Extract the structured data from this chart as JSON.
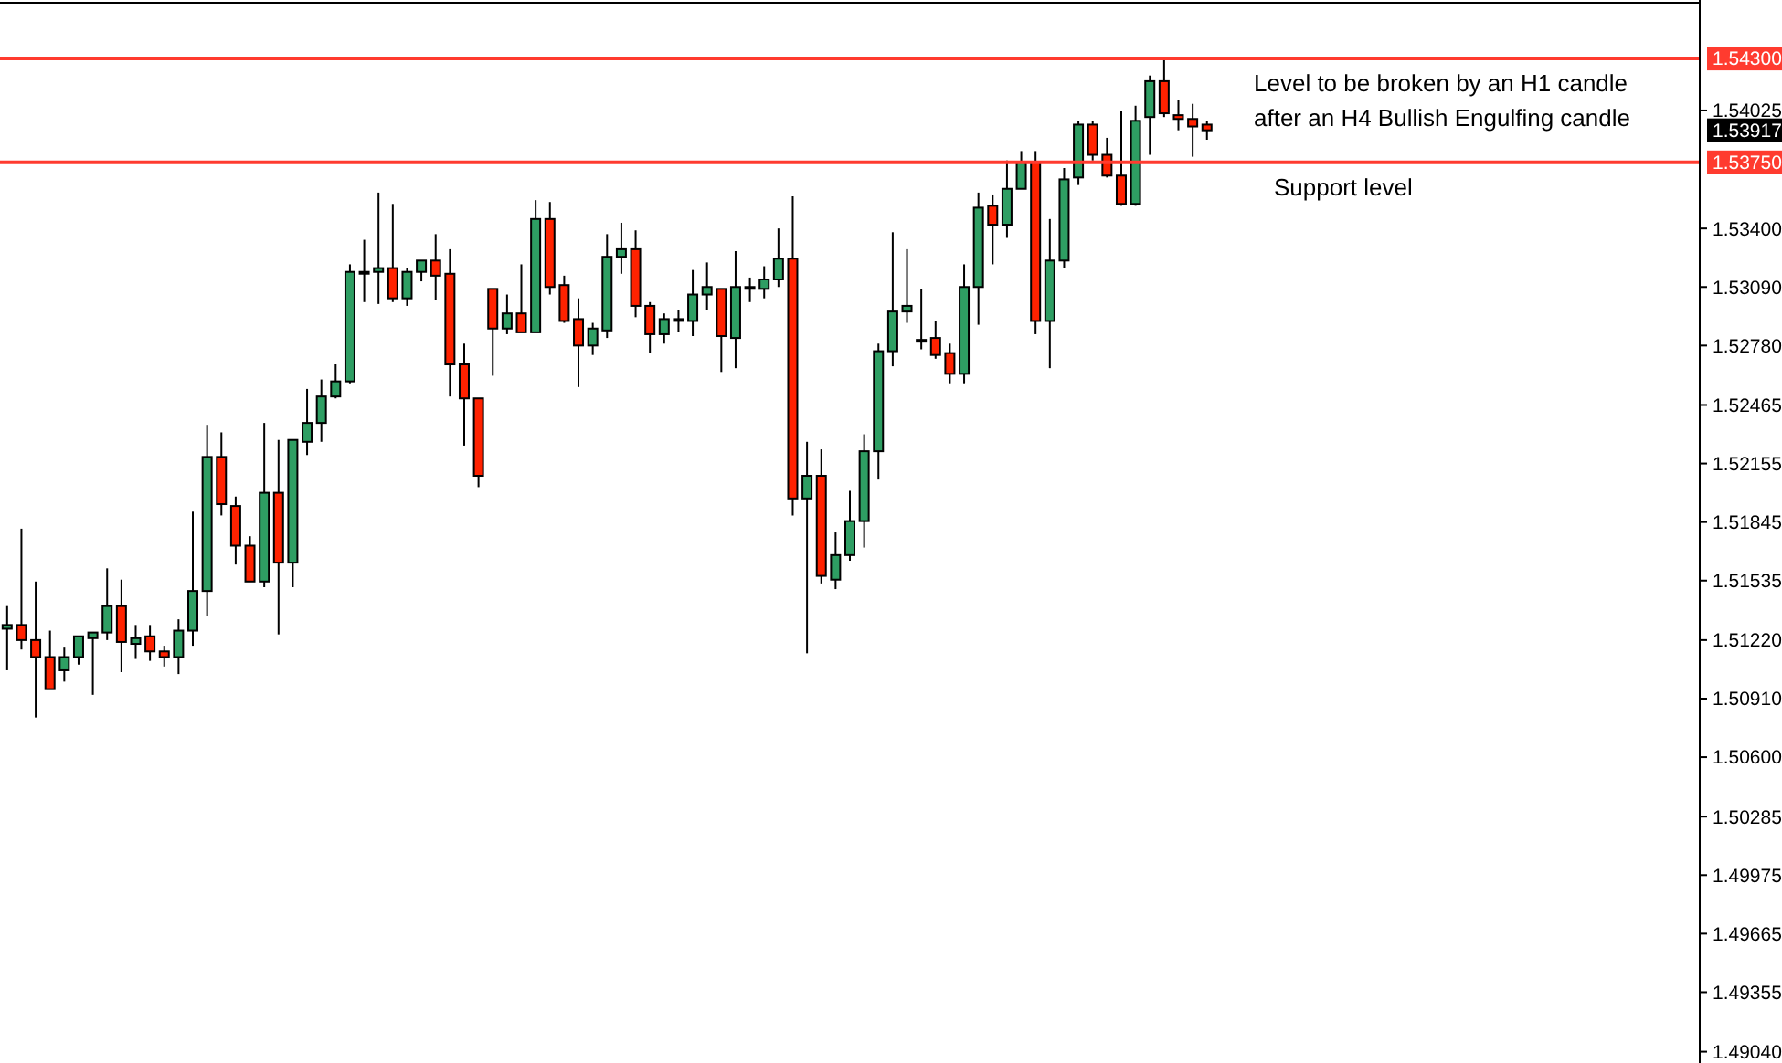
{
  "chart_data": {
    "type": "candlestick",
    "categories": [
      null,
      null,
      null,
      null,
      null,
      null,
      null,
      null,
      null,
      null,
      null,
      null,
      null,
      null,
      null,
      null,
      null,
      null,
      null,
      null,
      null,
      null,
      null,
      null,
      null,
      null,
      null,
      null,
      null,
      null,
      null,
      null,
      null,
      null,
      null,
      null,
      null,
      null,
      null,
      null,
      null,
      null,
      null,
      null,
      null,
      null,
      null,
      null,
      null,
      null,
      null,
      null,
      null,
      null,
      null,
      null,
      null,
      null,
      null,
      null,
      null,
      null,
      null,
      null,
      null,
      null,
      null,
      null,
      null,
      null,
      null,
      null,
      null,
      null,
      null,
      null,
      null,
      null,
      null,
      null,
      null,
      null,
      null,
      null,
      null,
      null,
      null,
      null,
      null,
      null,
      null,
      null,
      null,
      null,
      null,
      null,
      null,
      null,
      null,
      null,
      null,
      null,
      null,
      null,
      null,
      null,
      null,
      null,
      null,
      null,
      null,
      null,
      null,
      null,
      null,
      null,
      null,
      null,
      null
    ],
    "ohlc": [
      [
        1.5128,
        1.514,
        1.5106,
        1.513
      ],
      [
        1.513,
        1.5181,
        1.5117,
        1.5122
      ],
      [
        1.5122,
        1.5153,
        1.5081,
        1.5113
      ],
      [
        1.5113,
        1.5127,
        1.5096,
        1.5096
      ],
      [
        1.5106,
        1.5118,
        1.51,
        1.5113
      ],
      [
        1.5113,
        1.5124,
        1.5109,
        1.5124
      ],
      [
        1.5123,
        1.5126,
        1.5093,
        1.5126
      ],
      [
        1.5126,
        1.516,
        1.5122,
        1.514
      ],
      [
        1.514,
        1.5154,
        1.5105,
        1.5121
      ],
      [
        1.512,
        1.513,
        1.5112,
        1.5123
      ],
      [
        1.5124,
        1.513,
        1.5111,
        1.5116
      ],
      [
        1.5116,
        1.5119,
        1.5108,
        1.5113
      ],
      [
        1.5113,
        1.5133,
        1.5104,
        1.5127
      ],
      [
        1.5127,
        1.519,
        1.5119,
        1.5148
      ],
      [
        1.5148,
        1.5236,
        1.5135,
        1.5219
      ],
      [
        1.5219,
        1.5232,
        1.5188,
        1.5194
      ],
      [
        1.5193,
        1.5198,
        1.5162,
        1.5172
      ],
      [
        1.5172,
        1.5177,
        1.5153,
        1.5153
      ],
      [
        1.5153,
        1.5237,
        1.515,
        1.52
      ],
      [
        1.52,
        1.5228,
        1.5125,
        1.5163
      ],
      [
        1.5163,
        1.5228,
        1.515,
        1.5228
      ],
      [
        1.5227,
        1.5255,
        1.522,
        1.5237
      ],
      [
        1.5237,
        1.526,
        1.5227,
        1.5251
      ],
      [
        1.5251,
        1.5268,
        1.525,
        1.5259
      ],
      [
        1.5259,
        1.5321,
        1.5258,
        1.5317
      ],
      [
        1.5317,
        1.5334,
        1.5301,
        1.5317
      ],
      [
        1.5317,
        1.5359,
        1.53,
        1.5319
      ],
      [
        1.5319,
        1.5353,
        1.5301,
        1.5303
      ],
      [
        1.5303,
        1.5319,
        1.5299,
        1.5317
      ],
      [
        1.5317,
        1.5323,
        1.5312,
        1.5323
      ],
      [
        1.5323,
        1.5337,
        1.5302,
        1.5315
      ],
      [
        1.5316,
        1.5329,
        1.5251,
        1.5268
      ],
      [
        1.5268,
        1.5279,
        1.5225,
        1.525
      ],
      [
        1.525,
        1.525,
        1.5203,
        1.5209
      ],
      [
        1.5308,
        1.5308,
        1.5262,
        1.5287
      ],
      [
        1.5287,
        1.5305,
        1.5284,
        1.5295
      ],
      [
        1.5295,
        1.5321,
        1.5285,
        1.5285
      ],
      [
        1.5285,
        1.5355,
        1.5285,
        1.5345
      ],
      [
        1.5345,
        1.5354,
        1.5305,
        1.5309
      ],
      [
        1.531,
        1.5315,
        1.529,
        1.5291
      ],
      [
        1.5292,
        1.5303,
        1.5256,
        1.5278
      ],
      [
        1.5278,
        1.529,
        1.5273,
        1.5287
      ],
      [
        1.5286,
        1.5337,
        1.5282,
        1.5325
      ],
      [
        1.5325,
        1.5343,
        1.5316,
        1.5329
      ],
      [
        1.5329,
        1.5339,
        1.5293,
        1.5299
      ],
      [
        1.5299,
        1.5301,
        1.5274,
        1.5284
      ],
      [
        1.5284,
        1.5295,
        1.5279,
        1.5292
      ],
      [
        1.5292,
        1.5297,
        1.5285,
        1.5292
      ],
      [
        1.5291,
        1.5318,
        1.5283,
        1.5305
      ],
      [
        1.5305,
        1.5322,
        1.5297,
        1.5309
      ],
      [
        1.5308,
        1.5308,
        1.5264,
        1.5283
      ],
      [
        1.5282,
        1.5328,
        1.5266,
        1.5309
      ],
      [
        1.5309,
        1.5314,
        1.5301,
        1.5309
      ],
      [
        1.5308,
        1.532,
        1.5303,
        1.5313
      ],
      [
        1.5313,
        1.534,
        1.5309,
        1.5324
      ],
      [
        1.5324,
        1.5357,
        1.5188,
        1.5197
      ],
      [
        1.5197,
        1.5227,
        1.5115,
        1.5209
      ],
      [
        1.5209,
        1.5223,
        1.5152,
        1.5156
      ],
      [
        1.5154,
        1.5179,
        1.5149,
        1.5167
      ],
      [
        1.5167,
        1.5201,
        1.5164,
        1.5185
      ],
      [
        1.5185,
        1.5231,
        1.5171,
        1.5222
      ],
      [
        1.5222,
        1.5279,
        1.5207,
        1.5275
      ],
      [
        1.5275,
        1.5338,
        1.5267,
        1.5296
      ],
      [
        1.5296,
        1.5329,
        1.529,
        1.5299
      ],
      [
        1.5281,
        1.5308,
        1.5276,
        1.5281
      ],
      [
        1.5282,
        1.5291,
        1.5271,
        1.5273
      ],
      [
        1.5274,
        1.5279,
        1.5258,
        1.5263
      ],
      [
        1.5263,
        1.5321,
        1.5258,
        1.5309
      ],
      [
        1.5309,
        1.5359,
        1.5289,
        1.5351
      ],
      [
        1.5352,
        1.5358,
        1.5321,
        1.5342
      ],
      [
        1.5342,
        1.5376,
        1.5335,
        1.5361
      ],
      [
        1.5361,
        1.5381,
        1.5361,
        1.5375
      ],
      [
        1.5375,
        1.5381,
        1.5284,
        1.5291
      ],
      [
        1.5291,
        1.5345,
        1.5266,
        1.5323
      ],
      [
        1.5323,
        1.5372,
        1.5319,
        1.5366
      ],
      [
        1.5367,
        1.5397,
        1.5363,
        1.5395
      ],
      [
        1.5395,
        1.5397,
        1.5376,
        1.5379
      ],
      [
        1.5379,
        1.5388,
        1.5367,
        1.5368
      ],
      [
        1.5368,
        1.5402,
        1.5352,
        1.5353
      ],
      [
        1.5353,
        1.5405,
        1.5352,
        1.5397
      ],
      [
        1.5399,
        1.5421,
        1.5379,
        1.5418
      ],
      [
        1.5418,
        1.5431,
        1.5399,
        1.5401
      ],
      [
        1.54,
        1.5408,
        1.5392,
        1.5398
      ],
      [
        1.5398,
        1.5406,
        1.5378,
        1.5394
      ],
      [
        1.5395,
        1.5397,
        1.5387,
        1.5392
      ],
      null,
      null,
      null,
      null,
      null,
      null,
      null,
      null,
      null,
      null,
      null,
      null,
      null,
      null,
      null,
      null,
      null,
      null,
      null,
      null,
      null,
      null,
      null,
      null,
      null,
      null,
      null,
      null,
      null,
      null,
      null,
      null,
      null,
      null
    ],
    "colors": [
      "#2e9e63",
      "#ff2200",
      "#ff2200",
      "#ff2200",
      "#2e9e63",
      "#2e9e63",
      "#2e9e63",
      "#2e9e63",
      "#ff2200",
      "#2e9e63",
      "#ff2200",
      "#ff2200",
      "#2e9e63",
      "#2e9e63",
      "#2e9e63",
      "#ff2200",
      "#ff2200",
      "#ff2200",
      "#2e9e63",
      "#ff2200",
      "#2e9e63",
      "#2e9e63",
      "#2e9e63",
      "#2e9e63",
      "#2e9e63",
      "#2e9e63",
      "#2e9e63",
      "#ff2200",
      "#2e9e63",
      "#2e9e63",
      "#ff2200",
      "#ff2200",
      "#ff2200",
      "#ff2200",
      "#ff2200",
      "#2e9e63",
      "#ff2200",
      "#2e9e63",
      "#ff2200",
      "#ff2200",
      "#ff2200",
      "#2e9e63",
      "#2e9e63",
      "#2e9e63",
      "#ff2200",
      "#ff2200",
      "#2e9e63",
      "#2e9e63",
      "#2e9e63",
      "#2e9e63",
      "#ff2200",
      "#2e9e63",
      "#2e9e63",
      "#2e9e63",
      "#2e9e63",
      "#ff2200",
      "#2e9e63",
      "#ff2200",
      "#2e9e63",
      "#2e9e63",
      "#2e9e63",
      "#2e9e63",
      "#2e9e63",
      "#2e9e63",
      "#2e9e63",
      "#ff2200",
      "#ff2200",
      "#2e9e63",
      "#2e9e63",
      "#ff2200",
      "#2e9e63",
      "#2e9e63",
      "#ff2200",
      "#2e9e63",
      "#2e9e63",
      "#2e9e63",
      "#ff2200",
      "#ff2200",
      "#ff2200",
      "#2e9e63",
      "#2e9e63",
      "#ff2200",
      "#ff2200",
      "#ff2200",
      "#ff2200",
      null,
      null,
      null,
      null,
      null,
      null,
      null,
      null,
      null,
      null,
      null,
      null,
      null,
      null,
      null,
      null,
      null,
      null,
      null,
      null,
      null,
      null,
      null,
      null,
      null,
      null,
      null,
      null,
      null,
      null,
      null,
      null,
      null,
      null
    ],
    "ylim": [
      1.4898,
      1.5461
    ],
    "yticks": [
      1.54025,
      {
        "value": 1.534,
        "label": "1.53400"
      },
      {
        "value": 1.5309,
        "label": "1.53090"
      },
      {
        "value": 1.5278,
        "label": "1.52780"
      },
      1.52465,
      1.52155,
      1.51845,
      1.51535,
      {
        "value": 1.5122,
        "label": "1.51220"
      },
      {
        "value": 1.5091,
        "label": "1.50910"
      },
      {
        "value": 1.506,
        "label": "1.50600"
      },
      1.50285,
      1.49975,
      1.49665,
      1.49355,
      {
        "value": 1.4904,
        "label": "1.49040"
      }
    ],
    "ref_lines": [
      {
        "axis": "y",
        "value": 1.543,
        "label": "1.54300",
        "color": "#ff3b2f"
      },
      {
        "axis": "y",
        "value": 1.5375,
        "label": "1.53750",
        "color": "#ff3b2f"
      }
    ],
    "annotations": [
      "Level to be broken by an H1 candle after an H4 Bullish Engulfing candle",
      "Support level",
      "1.53917"
    ],
    "grid": false
  }
}
